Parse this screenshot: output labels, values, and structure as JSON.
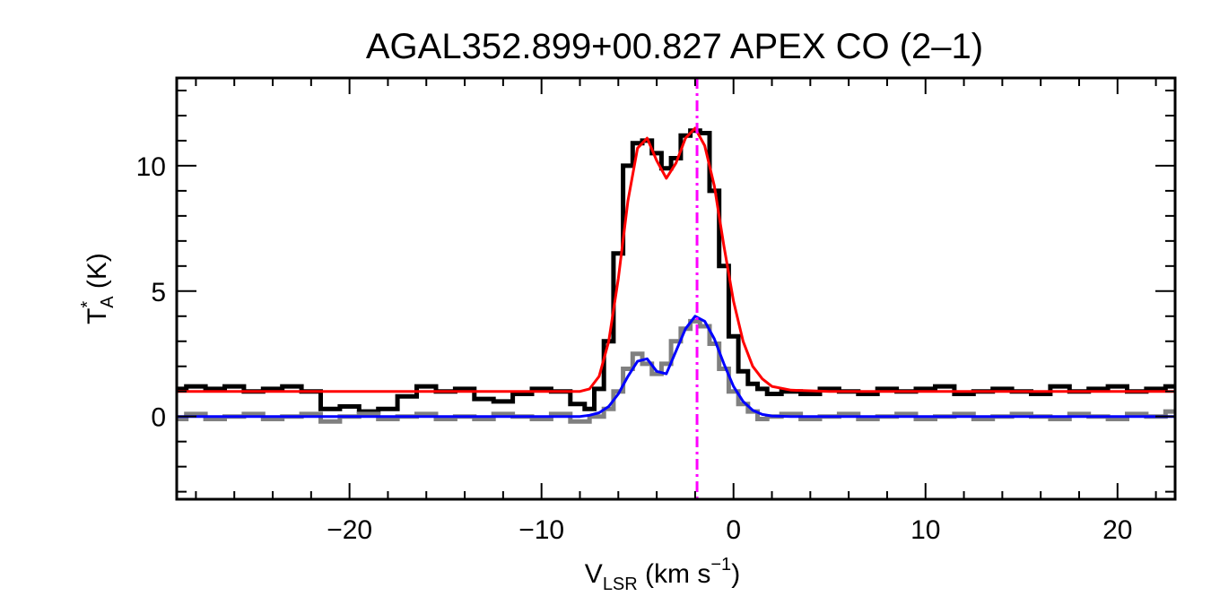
{
  "chart_data": {
    "type": "line",
    "title": "AGAL352.899+00.827  APEX CO (2–1)",
    "xlabel": {
      "main": "V",
      "sub": "LSR",
      "unit_pre": " (km s",
      "sup": "−1",
      "unit_post": ")"
    },
    "ylabel": {
      "main": "T",
      "sup": "*",
      "sub": "A",
      "unit": " (K)"
    },
    "xlim": [
      -29.0,
      23.0
    ],
    "ylim": [
      -3.3,
      13.5
    ],
    "xticks": [
      -20,
      -10,
      0,
      10,
      20
    ],
    "xtick_labels": [
      "−20",
      "−10",
      "0",
      "10",
      "20"
    ],
    "yticks": [
      0,
      5,
      10
    ],
    "ytick_labels": [
      "0",
      "5",
      "10"
    ],
    "x_minor_step": 2,
    "y_minor_step": 1,
    "grid": false,
    "reference_line": {
      "x": -1.9,
      "color": "#ff00ff",
      "style": "dash-dot"
    },
    "series": [
      {
        "role": "observed spectrum (offset +1 K)",
        "color": "#000000",
        "style": "histogram",
        "x": [
          -29,
          -28,
          -27,
          -26,
          -25,
          -24,
          -23,
          -22,
          -21,
          -20,
          -19,
          -18,
          -17,
          -16,
          -15,
          -14,
          -13,
          -12,
          -11,
          -10,
          -9,
          -8,
          -7.5,
          -7,
          -6.5,
          -6,
          -5.5,
          -5,
          -4.5,
          -4,
          -3.5,
          -3,
          -2.5,
          -2,
          -1.5,
          -1,
          -0.5,
          0,
          0.5,
          1,
          1.5,
          2,
          3,
          4,
          5,
          6,
          7,
          8,
          9,
          10,
          11,
          12,
          13,
          14,
          15,
          16,
          17,
          18,
          19,
          20,
          21,
          22,
          23
        ],
        "values": [
          1.1,
          1.2,
          1.1,
          1.2,
          1.0,
          1.1,
          1.2,
          1.0,
          0.3,
          0.4,
          0.2,
          0.3,
          0.8,
          1.2,
          1.0,
          1.1,
          0.7,
          0.6,
          0.9,
          1.1,
          1.0,
          0.5,
          0.3,
          1.1,
          3.0,
          6.5,
          10.0,
          10.9,
          11.0,
          10.5,
          9.9,
          10.3,
          11.2,
          11.4,
          11.3,
          9.0,
          6.0,
          3.2,
          1.8,
          1.3,
          1.1,
          0.9,
          1.0,
          0.9,
          1.1,
          1.0,
          0.9,
          1.1,
          1.0,
          1.1,
          1.2,
          0.9,
          1.0,
          1.1,
          1.0,
          0.9,
          1.2,
          1.0,
          1.1,
          1.2,
          1.0,
          1.1,
          1.2
        ]
      },
      {
        "role": "observed spectrum (second line)",
        "color": "#808080",
        "style": "histogram",
        "x": [
          -29,
          -28,
          -27,
          -26,
          -25,
          -24,
          -23,
          -22,
          -21,
          -20,
          -19,
          -18,
          -17,
          -16,
          -15,
          -14,
          -13,
          -12,
          -11,
          -10,
          -9,
          -8,
          -7,
          -6.5,
          -6,
          -5.5,
          -5,
          -4.5,
          -4,
          -3.5,
          -3,
          -2.5,
          -2,
          -1.5,
          -1,
          -0.5,
          0,
          0.5,
          1,
          1.5,
          2,
          3,
          4,
          5,
          6,
          7,
          8,
          9,
          10,
          11,
          12,
          13,
          14,
          15,
          16,
          17,
          18,
          19,
          20,
          21,
          22,
          23
        ],
        "values": [
          -0.1,
          0.1,
          -0.1,
          0.0,
          0.1,
          -0.1,
          0.0,
          0.1,
          -0.2,
          0.0,
          0.1,
          -0.1,
          0.0,
          0.1,
          -0.1,
          0.0,
          -0.1,
          0.1,
          0.0,
          -0.1,
          0.1,
          -0.2,
          0.0,
          0.3,
          1.0,
          1.9,
          2.5,
          2.1,
          1.7,
          2.1,
          3.0,
          3.5,
          3.8,
          3.6,
          2.9,
          1.9,
          1.0,
          0.5,
          0.2,
          -0.1,
          0.0,
          0.1,
          -0.1,
          0.0,
          0.1,
          -0.1,
          0.0,
          0.1,
          -0.1,
          0.0,
          0.1,
          -0.1,
          0.0,
          0.1,
          0.0,
          -0.1,
          0.1,
          0.0,
          -0.1,
          0.1,
          0.0,
          0.2
        ]
      },
      {
        "role": "gaussian fit (offset +1 K)",
        "color": "#ff0000",
        "style": "line",
        "x": [
          -29,
          -10,
          -8,
          -7.5,
          -7,
          -6.5,
          -6,
          -5.5,
          -5,
          -4.5,
          -4,
          -3.5,
          -3,
          -2.5,
          -2,
          -1.5,
          -1,
          -0.5,
          0,
          0.5,
          1,
          1.5,
          2,
          3,
          5,
          23
        ],
        "values": [
          1.0,
          1.0,
          1.0,
          1.1,
          1.6,
          3.0,
          5.5,
          8.6,
          10.7,
          11.1,
          10.2,
          9.5,
          10.1,
          11.1,
          11.5,
          10.8,
          9.2,
          6.8,
          4.6,
          3.0,
          2.0,
          1.5,
          1.2,
          1.05,
          1.0,
          1.0
        ]
      },
      {
        "role": "gaussian fit (second line)",
        "color": "#0000ff",
        "style": "line",
        "x": [
          -29,
          -10,
          -8,
          -7.5,
          -7,
          -6.5,
          -6,
          -5.5,
          -5,
          -4.5,
          -4,
          -3.5,
          -3,
          -2.5,
          -2,
          -1.5,
          -1,
          -0.5,
          0,
          0.5,
          1,
          1.5,
          2,
          3,
          5,
          23
        ],
        "values": [
          0.0,
          0.0,
          0.0,
          0.05,
          0.15,
          0.4,
          0.9,
          1.6,
          2.2,
          2.3,
          1.8,
          1.7,
          2.6,
          3.5,
          4.0,
          3.8,
          3.1,
          2.1,
          1.2,
          0.6,
          0.25,
          0.08,
          0.02,
          0.0,
          0.0,
          0.0
        ]
      }
    ]
  }
}
